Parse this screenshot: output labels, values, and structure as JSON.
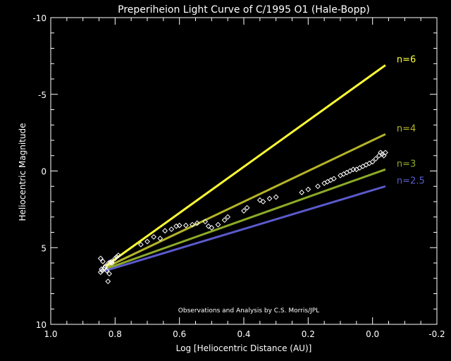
{
  "chart_data": {
    "type": "scatter",
    "title": "Preperiheion Light Curve of C/1995 O1 (Hale-Bopp)",
    "xlabel": "Log [Heliocentric Distance (AU)]",
    "ylabel": "Heliocentric Magnitude",
    "xlim": [
      1.0,
      -0.2
    ],
    "ylim": [
      10,
      -10
    ],
    "x_axis_reversed": true,
    "y_axis_reversed": true,
    "xticks": [
      1.0,
      0.8,
      0.6,
      0.4,
      0.2,
      0.0,
      -0.2
    ],
    "xtick_labels": [
      "1.0",
      "0.8",
      "0.6",
      "0.4",
      "0.2",
      "0.0",
      "-0.2"
    ],
    "yticks": [
      -10,
      -5,
      0,
      5,
      10
    ],
    "ytick_labels": [
      "-10",
      "-5",
      "0",
      "5",
      "10"
    ],
    "grid": false,
    "annotation": "Observations and Analysis by C.S. Morris/JPL",
    "lines": [
      {
        "name": "n=6",
        "color": "#ffff33",
        "x": [
          0.83,
          -0.04
        ],
        "y": [
          6.2,
          -6.9
        ]
      },
      {
        "name": "n=4",
        "color": "#b4b428",
        "x": [
          0.83,
          -0.04
        ],
        "y": [
          6.3,
          -2.4
        ]
      },
      {
        "name": "n=3",
        "color": "#8caa28",
        "x": [
          0.83,
          -0.04
        ],
        "y": [
          6.4,
          -0.1
        ]
      },
      {
        "name": "n=2.5",
        "color": "#5a5acd",
        "x": [
          0.83,
          -0.04
        ],
        "y": [
          6.5,
          1.0
        ]
      }
    ],
    "observations": {
      "name": "Observations",
      "marker": "diamond",
      "color": "#ffffff",
      "x": [
        0.845,
        0.84,
        0.835,
        0.83,
        0.82,
        0.815,
        0.81,
        0.8,
        0.795,
        0.79,
        0.845,
        0.838,
        0.832,
        0.826,
        0.818,
        0.822,
        0.81,
        0.842,
        0.72,
        0.7,
        0.68,
        0.66,
        0.645,
        0.625,
        0.61,
        0.6,
        0.58,
        0.56,
        0.545,
        0.52,
        0.51,
        0.5,
        0.48,
        0.46,
        0.45,
        0.4,
        0.39,
        0.35,
        0.34,
        0.32,
        0.3,
        0.22,
        0.2,
        0.17,
        0.15,
        0.14,
        0.13,
        0.12,
        0.1,
        0.09,
        0.08,
        0.07,
        0.06,
        0.05,
        0.04,
        0.03,
        0.02,
        0.01,
        0.0,
        -0.01,
        -0.02,
        -0.025,
        -0.03,
        -0.035,
        -0.04
      ],
      "y": [
        6.6,
        6.5,
        6.4,
        6.2,
        6.0,
        5.95,
        5.9,
        5.7,
        5.6,
        5.5,
        5.7,
        5.9,
        6.3,
        6.5,
        6.7,
        7.2,
        6.0,
        6.4,
        4.8,
        4.6,
        4.3,
        4.4,
        3.9,
        3.8,
        3.6,
        3.55,
        3.55,
        3.5,
        3.4,
        3.3,
        3.6,
        3.7,
        3.5,
        3.2,
        3.0,
        2.6,
        2.4,
        1.9,
        2.0,
        1.8,
        1.7,
        1.4,
        1.2,
        1.0,
        0.8,
        0.7,
        0.6,
        0.5,
        0.3,
        0.2,
        0.1,
        0.0,
        -0.1,
        -0.1,
        -0.2,
        -0.3,
        -0.4,
        -0.5,
        -0.6,
        -0.8,
        -1.0,
        -1.2,
        -1.1,
        -1.0,
        -1.2
      ]
    }
  }
}
